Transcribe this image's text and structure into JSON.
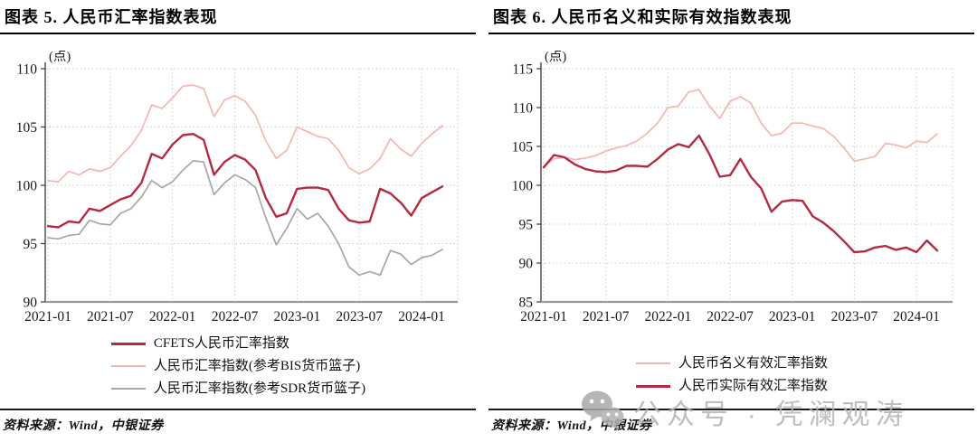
{
  "figures": [
    {
      "title": "图表 5. 人民币汇率指数表现",
      "source": "资料来源：Wind，中银证券"
    },
    {
      "title": "图表 6. 人民币名义和实际有效指数表现",
      "source": "资料来源：Wind，中银证券"
    }
  ],
  "watermark": {
    "icon": "wechat-icon",
    "text": "公众号 · 凭澜观涛",
    "color": "#b5b5b5"
  },
  "colors": {
    "dark_red": "#b62a41",
    "pink": "#f3b7b1",
    "gray": "#a7a7a7"
  },
  "chart_data": [
    {
      "type": "line",
      "title": "图表 5. 人民币汇率指数表现",
      "unit": "(点)",
      "xlabel": "",
      "ylabel": "",
      "x": [
        "2021-01",
        "2021-02",
        "2021-03",
        "2021-04",
        "2021-05",
        "2021-06",
        "2021-07",
        "2021-08",
        "2021-09",
        "2021-10",
        "2021-11",
        "2021-12",
        "2022-01",
        "2022-02",
        "2022-03",
        "2022-04",
        "2022-05",
        "2022-06",
        "2022-07",
        "2022-08",
        "2022-09",
        "2022-10",
        "2022-11",
        "2022-12",
        "2023-01",
        "2023-02",
        "2023-03",
        "2023-04",
        "2023-05",
        "2023-06",
        "2023-07",
        "2023-08",
        "2023-09",
        "2023-10",
        "2023-11",
        "2023-12",
        "2024-01",
        "2024-02",
        "2024-03"
      ],
      "x_tick_labels": [
        "2021-01",
        "2021-07",
        "2022-01",
        "2022-07",
        "2023-01",
        "2023-07",
        "2024-01"
      ],
      "x_tick_every": 6,
      "ylim": [
        90,
        110
      ],
      "ytick_step": 5,
      "grid": "dotted",
      "legend_position": "bottom",
      "series": [
        {
          "name": "CFETS人民币汇率指数",
          "color": "#b62a41",
          "width": 2.4,
          "z": 3,
          "values": [
            96.5,
            96.4,
            96.9,
            96.8,
            98.0,
            97.8,
            98.3,
            98.8,
            99.1,
            100.2,
            102.7,
            102.3,
            103.5,
            104.3,
            104.4,
            103.9,
            100.9,
            102.0,
            102.6,
            102.2,
            101.3,
            98.9,
            97.3,
            97.6,
            99.7,
            99.8,
            99.8,
            99.6,
            98.0,
            97.0,
            96.8,
            96.9,
            99.7,
            99.3,
            98.5,
            97.4,
            98.9,
            99.4,
            99.9
          ]
        },
        {
          "name": "人民币汇率指数(参考BIS货币篮子)",
          "color": "#f3b7b1",
          "width": 1.7,
          "z": 1,
          "values": [
            100.4,
            100.3,
            101.2,
            100.9,
            101.4,
            101.2,
            101.5,
            102.5,
            103.4,
            104.7,
            106.9,
            106.6,
            107.5,
            108.5,
            108.6,
            108.3,
            105.9,
            107.3,
            107.7,
            107.2,
            106.0,
            103.8,
            102.3,
            103.0,
            105.0,
            104.6,
            104.2,
            104.0,
            103.0,
            101.5,
            101.0,
            101.4,
            102.3,
            104.0,
            103.1,
            102.5,
            103.6,
            104.4,
            105.1
          ]
        },
        {
          "name": "人民币汇率指数(参考SDR货币篮子)",
          "color": "#a7a7a7",
          "width": 1.7,
          "z": 2,
          "values": [
            95.5,
            95.4,
            95.7,
            95.8,
            97.0,
            96.7,
            96.6,
            97.6,
            98.0,
            99.0,
            100.4,
            99.8,
            100.3,
            101.3,
            102.1,
            102.0,
            99.2,
            100.2,
            100.9,
            100.5,
            99.8,
            97.2,
            94.9,
            96.3,
            98.0,
            97.1,
            97.6,
            96.5,
            95.0,
            93.0,
            92.3,
            92.6,
            92.3,
            94.4,
            94.1,
            93.2,
            93.8,
            94.0,
            94.5
          ]
        }
      ]
    },
    {
      "type": "line",
      "title": "图表 6. 人民币名义和实际有效指数表现",
      "unit": "(点)",
      "xlabel": "",
      "ylabel": "",
      "x": [
        "2021-01",
        "2021-02",
        "2021-03",
        "2021-04",
        "2021-05",
        "2021-06",
        "2021-07",
        "2021-08",
        "2021-09",
        "2021-10",
        "2021-11",
        "2021-12",
        "2022-01",
        "2022-02",
        "2022-03",
        "2022-04",
        "2022-05",
        "2022-06",
        "2022-07",
        "2022-08",
        "2022-09",
        "2022-10",
        "2022-11",
        "2022-12",
        "2023-01",
        "2023-02",
        "2023-03",
        "2023-04",
        "2023-05",
        "2023-06",
        "2023-07",
        "2023-08",
        "2023-09",
        "2023-10",
        "2023-11",
        "2023-12",
        "2024-01",
        "2024-02",
        "2024-03"
      ],
      "x_tick_labels": [
        "2021-01",
        "2021-07",
        "2022-01",
        "2022-07",
        "2023-01",
        "2023-07",
        "2024-01"
      ],
      "x_tick_every": 6,
      "ylim": [
        85,
        115
      ],
      "ytick_step": 5,
      "grid": "dotted",
      "legend_position": "bottom",
      "series": [
        {
          "name": "人民币名义有效汇率指数",
          "color": "#f3b7b1",
          "width": 1.7,
          "z": 1,
          "values": [
            102.4,
            103.4,
            103.6,
            103.3,
            103.5,
            103.8,
            104.4,
            104.8,
            105.1,
            105.7,
            106.7,
            108.0,
            110.0,
            110.2,
            112.0,
            112.3,
            110.2,
            108.6,
            110.8,
            111.4,
            110.6,
            108.0,
            106.4,
            106.7,
            108.0,
            108.0,
            107.6,
            107.3,
            106.3,
            104.8,
            103.1,
            103.4,
            103.7,
            105.4,
            105.2,
            104.8,
            105.7,
            105.5,
            106.6
          ]
        },
        {
          "name": "人民币实际有效汇率指数",
          "color": "#b62a41",
          "width": 2.4,
          "z": 2,
          "values": [
            102.3,
            103.9,
            103.6,
            102.7,
            102.1,
            101.8,
            101.7,
            101.9,
            102.5,
            102.5,
            102.4,
            103.4,
            104.6,
            105.3,
            104.9,
            106.4,
            104.0,
            101.1,
            101.3,
            103.4,
            101.1,
            99.6,
            96.6,
            97.9,
            98.1,
            98.0,
            96.0,
            95.2,
            94.1,
            92.8,
            91.4,
            91.5,
            92.0,
            92.2,
            91.7,
            92.0,
            91.4,
            92.9,
            91.6
          ]
        }
      ]
    }
  ]
}
